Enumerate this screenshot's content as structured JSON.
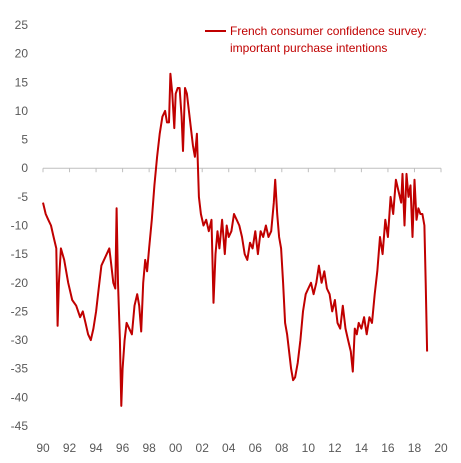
{
  "chart_data": {
    "type": "line",
    "title": "",
    "xlabel": "",
    "ylabel": "",
    "ylim": [
      -45,
      25
    ],
    "xlim": [
      1990,
      2020
    ],
    "y_ticks": [
      25,
      20,
      15,
      10,
      5,
      0,
      -5,
      -10,
      -15,
      -20,
      -25,
      -30,
      -35,
      -40,
      -45
    ],
    "x_tick_labels": [
      "90",
      "92",
      "94",
      "96",
      "98",
      "00",
      "02",
      "04",
      "06",
      "08",
      "10",
      "12",
      "14",
      "16",
      "18",
      "20"
    ],
    "grid": false,
    "legend_position": "top-right",
    "series": [
      {
        "name": "French consumer confidence survey: important purchase intentions",
        "legend_lines": [
          "French consumer confidence survey:",
          "important purchase intentions"
        ],
        "color": "#c00000",
        "points": [
          [
            1990.0,
            -6
          ],
          [
            1990.2,
            -8
          ],
          [
            1990.4,
            -9
          ],
          [
            1990.6,
            -10
          ],
          [
            1990.8,
            -12
          ],
          [
            1991.0,
            -14
          ],
          [
            1991.1,
            -27.5
          ],
          [
            1991.2,
            -20
          ],
          [
            1991.35,
            -14
          ],
          [
            1991.6,
            -16
          ],
          [
            1991.9,
            -20
          ],
          [
            1992.2,
            -23
          ],
          [
            1992.5,
            -24
          ],
          [
            1992.8,
            -26
          ],
          [
            1993.0,
            -25
          ],
          [
            1993.2,
            -27
          ],
          [
            1993.4,
            -29
          ],
          [
            1993.6,
            -30
          ],
          [
            1993.8,
            -28
          ],
          [
            1994.0,
            -25
          ],
          [
            1994.2,
            -21
          ],
          [
            1994.4,
            -17
          ],
          [
            1994.6,
            -16
          ],
          [
            1994.8,
            -15
          ],
          [
            1995.0,
            -14
          ],
          [
            1995.1,
            -16
          ],
          [
            1995.3,
            -20
          ],
          [
            1995.45,
            -21
          ],
          [
            1995.55,
            -7
          ],
          [
            1995.65,
            -20
          ],
          [
            1995.8,
            -30
          ],
          [
            1995.9,
            -41.5
          ],
          [
            1996.0,
            -35
          ],
          [
            1996.15,
            -30
          ],
          [
            1996.3,
            -27
          ],
          [
            1996.5,
            -28
          ],
          [
            1996.7,
            -29
          ],
          [
            1996.9,
            -24
          ],
          [
            1997.1,
            -22
          ],
          [
            1997.25,
            -24
          ],
          [
            1997.4,
            -28.5
          ],
          [
            1997.55,
            -20
          ],
          [
            1997.7,
            -16
          ],
          [
            1997.85,
            -18
          ],
          [
            1998.0,
            -14
          ],
          [
            1998.2,
            -9
          ],
          [
            1998.4,
            -3
          ],
          [
            1998.6,
            2
          ],
          [
            1998.8,
            6
          ],
          [
            1999.0,
            9
          ],
          [
            1999.2,
            10
          ],
          [
            1999.35,
            8
          ],
          [
            1999.5,
            8
          ],
          [
            1999.6,
            16.5
          ],
          [
            1999.75,
            13
          ],
          [
            1999.9,
            7
          ],
          [
            2000.0,
            13
          ],
          [
            2000.15,
            14
          ],
          [
            2000.3,
            14
          ],
          [
            2000.45,
            9
          ],
          [
            2000.55,
            3
          ],
          [
            2000.7,
            14
          ],
          [
            2000.85,
            13
          ],
          [
            2001.0,
            10
          ],
          [
            2001.15,
            7
          ],
          [
            2001.3,
            4
          ],
          [
            2001.45,
            2
          ],
          [
            2001.6,
            6
          ],
          [
            2001.75,
            -5
          ],
          [
            2001.9,
            -8
          ],
          [
            2002.1,
            -10
          ],
          [
            2002.3,
            -9
          ],
          [
            2002.5,
            -11
          ],
          [
            2002.7,
            -9
          ],
          [
            2002.85,
            -23.5
          ],
          [
            2003.0,
            -15
          ],
          [
            2003.15,
            -11
          ],
          [
            2003.3,
            -14
          ],
          [
            2003.5,
            -9
          ],
          [
            2003.7,
            -15
          ],
          [
            2003.85,
            -10
          ],
          [
            2004.0,
            -12
          ],
          [
            2004.2,
            -11
          ],
          [
            2004.4,
            -8
          ],
          [
            2004.6,
            -9
          ],
          [
            2004.8,
            -10
          ],
          [
            2005.0,
            -12
          ],
          [
            2005.2,
            -15
          ],
          [
            2005.4,
            -16
          ],
          [
            2005.6,
            -13
          ],
          [
            2005.8,
            -14
          ],
          [
            2006.0,
            -11
          ],
          [
            2006.2,
            -15
          ],
          [
            2006.4,
            -11
          ],
          [
            2006.6,
            -12
          ],
          [
            2006.8,
            -10
          ],
          [
            2007.0,
            -12
          ],
          [
            2007.2,
            -11
          ],
          [
            2007.4,
            -6
          ],
          [
            2007.5,
            -2
          ],
          [
            2007.65,
            -8
          ],
          [
            2007.8,
            -12
          ],
          [
            2007.95,
            -14
          ],
          [
            2008.1,
            -20
          ],
          [
            2008.25,
            -27
          ],
          [
            2008.4,
            -29
          ],
          [
            2008.55,
            -32
          ],
          [
            2008.7,
            -35
          ],
          [
            2008.85,
            -37
          ],
          [
            2009.0,
            -36.5
          ],
          [
            2009.2,
            -34
          ],
          [
            2009.4,
            -30
          ],
          [
            2009.6,
            -25
          ],
          [
            2009.8,
            -22
          ],
          [
            2010.0,
            -21
          ],
          [
            2010.2,
            -20
          ],
          [
            2010.4,
            -22
          ],
          [
            2010.6,
            -20
          ],
          [
            2010.8,
            -17
          ],
          [
            2011.0,
            -20
          ],
          [
            2011.2,
            -18
          ],
          [
            2011.4,
            -21
          ],
          [
            2011.6,
            -22
          ],
          [
            2011.8,
            -25
          ],
          [
            2012.0,
            -23
          ],
          [
            2012.2,
            -27
          ],
          [
            2012.4,
            -28
          ],
          [
            2012.6,
            -24
          ],
          [
            2012.8,
            -28
          ],
          [
            2013.0,
            -30
          ],
          [
            2013.2,
            -32
          ],
          [
            2013.35,
            -35.5
          ],
          [
            2013.5,
            -28
          ],
          [
            2013.65,
            -29
          ],
          [
            2013.8,
            -27
          ],
          [
            2014.0,
            -28
          ],
          [
            2014.2,
            -26
          ],
          [
            2014.4,
            -29
          ],
          [
            2014.6,
            -26
          ],
          [
            2014.8,
            -27
          ],
          [
            2015.0,
            -22
          ],
          [
            2015.2,
            -18
          ],
          [
            2015.4,
            -12
          ],
          [
            2015.6,
            -15
          ],
          [
            2015.8,
            -9
          ],
          [
            2016.0,
            -12
          ],
          [
            2016.2,
            -5
          ],
          [
            2016.4,
            -8
          ],
          [
            2016.6,
            -2
          ],
          [
            2016.8,
            -4
          ],
          [
            2017.0,
            -6
          ],
          [
            2017.1,
            -1
          ],
          [
            2017.25,
            -10
          ],
          [
            2017.4,
            -1
          ],
          [
            2017.55,
            -5
          ],
          [
            2017.7,
            -3
          ],
          [
            2017.85,
            -12
          ],
          [
            2018.0,
            -2
          ],
          [
            2018.15,
            -9
          ],
          [
            2018.3,
            -7
          ],
          [
            2018.45,
            -8
          ],
          [
            2018.6,
            -8
          ],
          [
            2018.75,
            -10
          ],
          [
            2018.85,
            -20
          ],
          [
            2018.95,
            -32
          ]
        ]
      }
    ]
  }
}
